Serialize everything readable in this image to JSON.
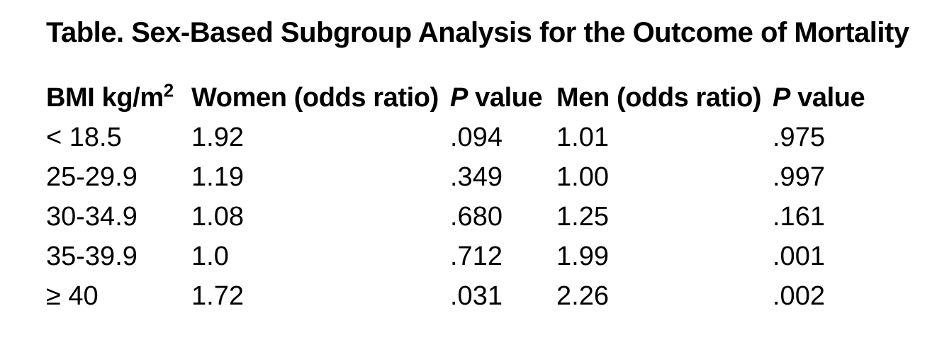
{
  "page": {
    "background_color": "#ffffff",
    "text_color": "#000000"
  },
  "table": {
    "title": "Table. Sex-Based Subgroup Analysis for the Outcome of Mortality",
    "header_display": {
      "bmi_base": "BMI kg/m",
      "bmi_sup": "2",
      "women": "Women (odds ratio)",
      "p_italic": "P",
      "p_word": "value",
      "men": "Men (odds ratio)"
    }
  },
  "chart_data": {
    "type": "table",
    "title": "Table. Sex-Based Subgroup Analysis for the Outcome of Mortality",
    "columns": [
      "BMI kg/m²",
      "Women (odds ratio)",
      "P value",
      "Men (odds ratio)",
      "P value"
    ],
    "rows": [
      [
        "< 18.5",
        "1.92",
        ".094",
        "1.01",
        ".975"
      ],
      [
        "25-29.9",
        "1.19",
        ".349",
        "1.00",
        ".997"
      ],
      [
        "30-34.9",
        "1.08",
        ".680",
        "1.25",
        ".161"
      ],
      [
        "35-39.9",
        "1.0",
        ".712",
        "1.99",
        ".001"
      ],
      [
        "≥ 40",
        "1.72",
        ".031",
        "2.26",
        ".002"
      ]
    ]
  }
}
